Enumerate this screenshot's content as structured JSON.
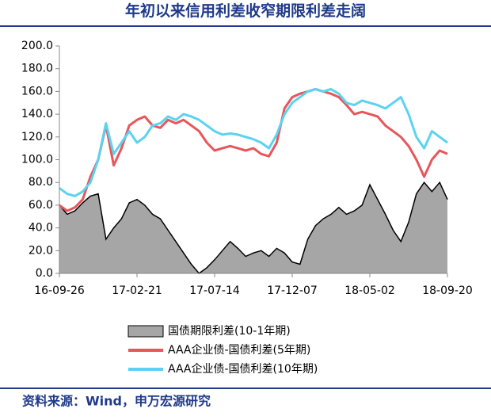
{
  "chart_data": {
    "type": "line",
    "title": "年初以来信用利差收窄期限利差走阔",
    "source": "资料来源：Wind，申万宏源研究",
    "categories": [
      "16-09-26",
      null,
      null,
      null,
      null,
      null,
      null,
      null,
      null,
      null,
      "17-02-21",
      null,
      null,
      null,
      null,
      null,
      null,
      null,
      null,
      null,
      "17-07-14",
      null,
      null,
      null,
      null,
      null,
      null,
      null,
      null,
      null,
      "17-12-07",
      null,
      null,
      null,
      null,
      null,
      null,
      null,
      null,
      null,
      "18-05-02",
      null,
      null,
      null,
      null,
      null,
      null,
      null,
      null,
      null,
      "18-09-20"
    ],
    "series": [
      {
        "name": "国债期限利差(10-1年期)",
        "color": "#a6a6a6",
        "area": true,
        "values": [
          60,
          52,
          55,
          62,
          68,
          70,
          30,
          40,
          48,
          62,
          65,
          60,
          52,
          48,
          38,
          28,
          18,
          8,
          0,
          5,
          12,
          20,
          28,
          22,
          15,
          18,
          20,
          15,
          22,
          18,
          10,
          8,
          30,
          42,
          48,
          52,
          58,
          52,
          55,
          60,
          78,
          65,
          52,
          38,
          28,
          45,
          70,
          80,
          72,
          80,
          65
        ]
      },
      {
        "name": "AAA企业债-国债利差(5年期)",
        "color": "#e8565a",
        "values": [
          60,
          55,
          58,
          65,
          85,
          100,
          130,
          95,
          110,
          130,
          135,
          138,
          130,
          128,
          135,
          132,
          135,
          130,
          125,
          115,
          108,
          110,
          112,
          110,
          108,
          110,
          105,
          103,
          115,
          145,
          155,
          158,
          160,
          162,
          160,
          158,
          155,
          148,
          140,
          142,
          140,
          138,
          130,
          125,
          120,
          112,
          100,
          85,
          100,
          108,
          105
        ]
      },
      {
        "name": "AAA企业债-国债利差(10年期)",
        "color": "#5bd3f0",
        "values": [
          75,
          70,
          68,
          72,
          80,
          100,
          132,
          105,
          115,
          125,
          115,
          120,
          130,
          132,
          138,
          135,
          140,
          138,
          135,
          130,
          125,
          122,
          123,
          122,
          120,
          118,
          115,
          110,
          122,
          140,
          150,
          155,
          160,
          162,
          160,
          162,
          158,
          150,
          148,
          152,
          150,
          148,
          145,
          150,
          155,
          140,
          120,
          110,
          125,
          120,
          115
        ]
      }
    ],
    "ylim": [
      0,
      200
    ],
    "yticks": [
      {
        "value": 0,
        "label": "0.0"
      },
      {
        "value": 20,
        "label": "20.0"
      },
      {
        "value": 40,
        "label": "40.0"
      },
      {
        "value": 60,
        "label": "60.0"
      },
      {
        "value": 80,
        "label": "80.0"
      },
      {
        "value": 100,
        "label": "100.0"
      },
      {
        "value": 120,
        "label": "120.0"
      },
      {
        "value": 140,
        "label": "140.0"
      },
      {
        "value": 160,
        "label": "160.0"
      },
      {
        "value": 180,
        "label": "180.0"
      },
      {
        "value": 200,
        "label": "200.0"
      }
    ]
  }
}
